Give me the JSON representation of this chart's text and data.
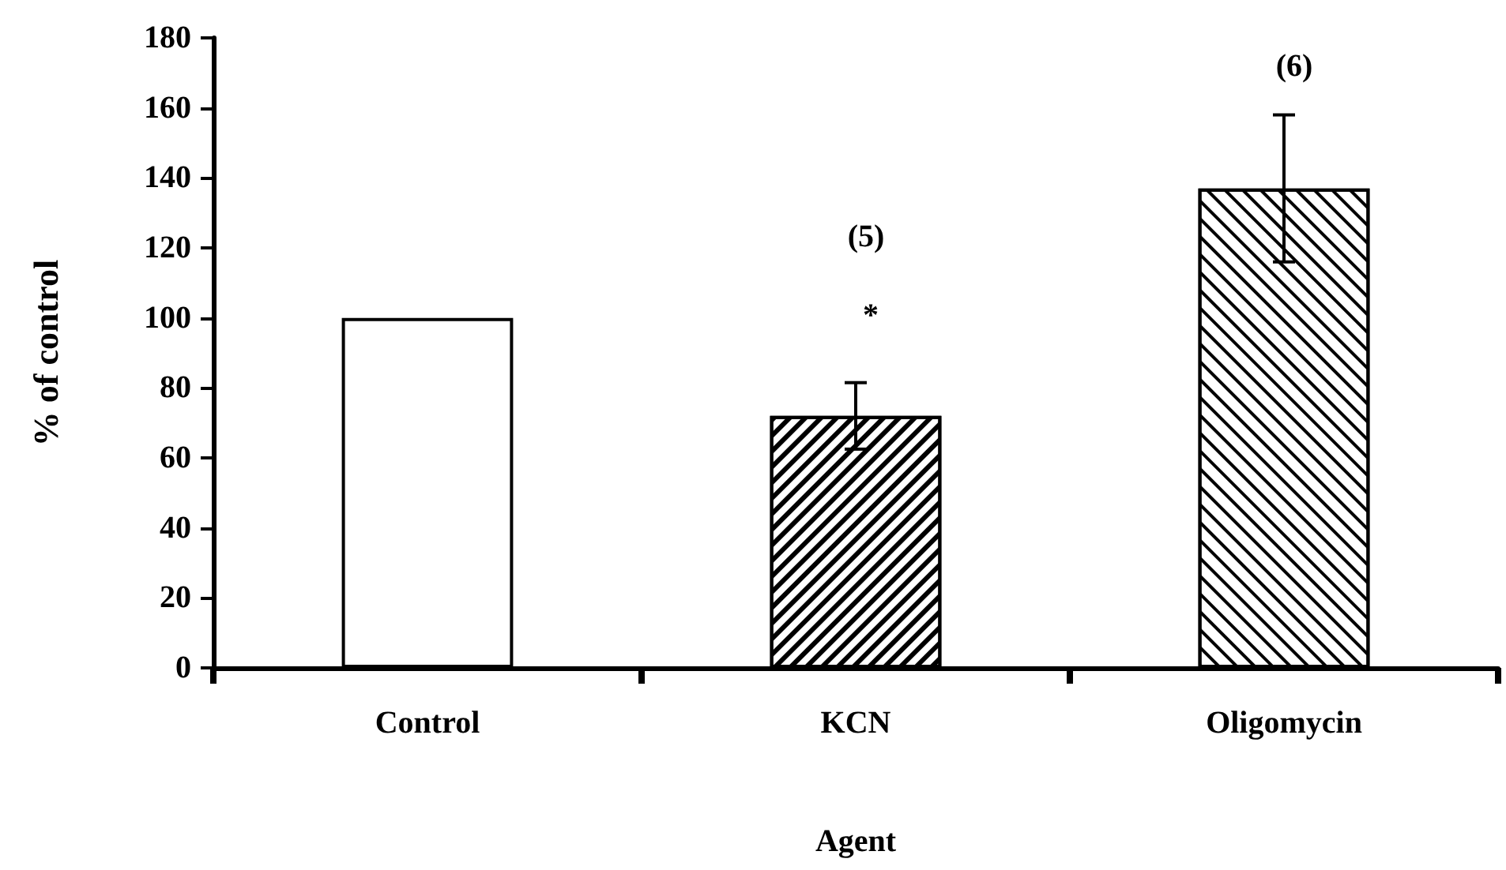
{
  "chart_data": {
    "type": "bar",
    "xlabel": "Agent",
    "ylabel": "% of control",
    "categories": [
      "Control",
      "KCN",
      "Oligomycin"
    ],
    "values": [
      100,
      72,
      137
    ],
    "errors": [
      null,
      9.5,
      21
    ],
    "colors": [
      "#ffffff",
      "#ffffff",
      "#ffffff"
    ],
    "ylim": [
      0,
      180
    ],
    "yticks": [
      0,
      20,
      40,
      60,
      80,
      100,
      120,
      140,
      160,
      180
    ],
    "grid": false,
    "annotations": [
      "(5)",
      "*",
      "(6)"
    ]
  }
}
